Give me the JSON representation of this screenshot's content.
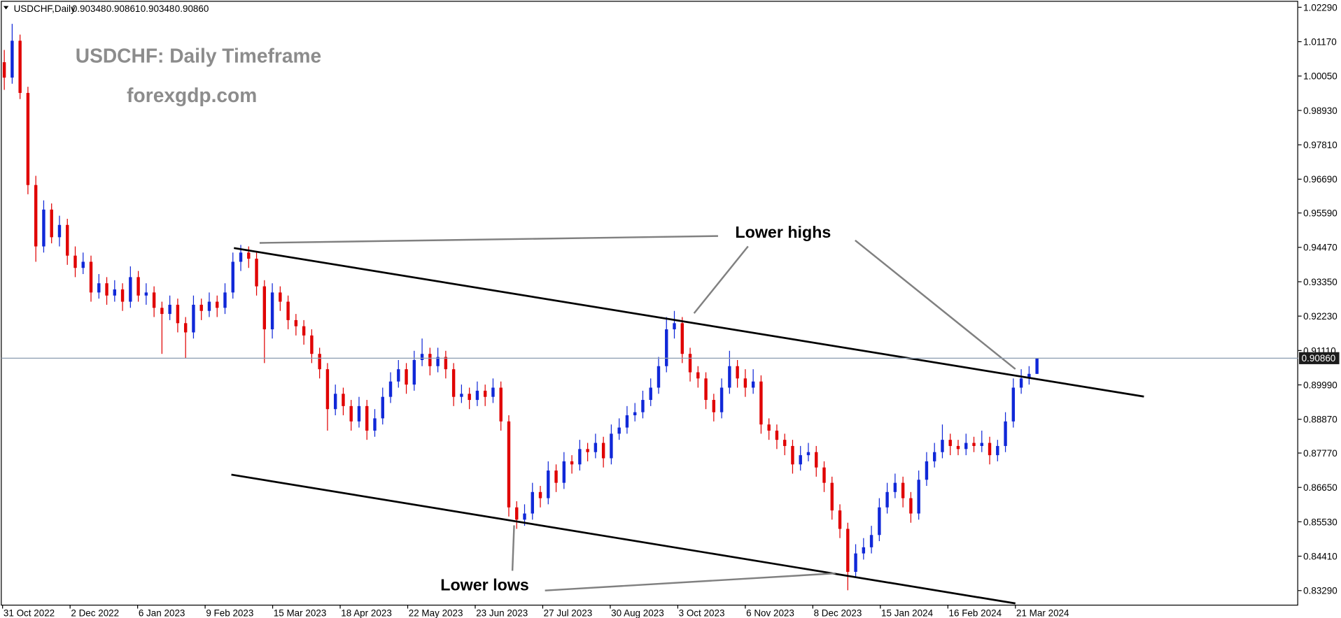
{
  "chart_data": {
    "type": "candlestick",
    "header": {
      "symbol": "USDCHF,Daily",
      "ohlc": [
        "0.90348",
        "0.90861",
        "0.90348",
        "0.90860"
      ]
    },
    "title": "USDCHF: Daily Timeframe",
    "subtitle": "forexgdp.com",
    "annotations": [
      "Lower highs",
      "Lower lows"
    ],
    "up_color": "#1028d8",
    "down_color": "#e00000",
    "ylim": [
      0.82816,
      1.02485
    ],
    "yticks": [
      {
        "value": 1.0229,
        "label": "1.02290"
      },
      {
        "value": 1.0117,
        "label": "1.01170"
      },
      {
        "value": 1.0005,
        "label": "1.00050"
      },
      {
        "value": 0.9893,
        "label": "0.98930"
      },
      {
        "value": 0.9781,
        "label": "0.97810"
      },
      {
        "value": 0.9669,
        "label": "0.96690"
      },
      {
        "value": 0.9559,
        "label": "0.95590"
      },
      {
        "value": 0.9447,
        "label": "0.94470"
      },
      {
        "value": 0.9335,
        "label": "0.93350"
      },
      {
        "value": 0.9223,
        "label": "0.92230"
      },
      {
        "value": 0.9111,
        "label": "0.91110"
      },
      {
        "value": 0.8999,
        "label": "0.89990"
      },
      {
        "value": 0.8887,
        "label": "0.88870"
      },
      {
        "value": 0.8777,
        "label": "0.87770"
      },
      {
        "value": 0.8665,
        "label": "0.86650"
      },
      {
        "value": 0.8553,
        "label": "0.85530"
      },
      {
        "value": 0.8441,
        "label": "0.84410"
      },
      {
        "value": 0.8329,
        "label": "0.83290"
      }
    ],
    "price_line": {
      "value": 0.9086,
      "label": "0.90860"
    },
    "x_labels": [
      "31 Oct 2022",
      "2 Dec 2022",
      "6 Jan 2023",
      "9 Feb 2023",
      "15 Mar 2023",
      "18 Apr 2023",
      "22 May 2023",
      "23 Jun 2023",
      "27 Jul 2023",
      "30 Aug 2023",
      "3 Oct 2023",
      "6 Nov 2023",
      "8 Dec 2023",
      "15 Jan 2024",
      "16 Feb 2024",
      "21 Mar 2024"
    ],
    "candles": [
      [
        1.005,
        1.009,
        0.996,
        1.0
      ],
      [
        1.0,
        1.0175,
        0.998,
        1.012
      ],
      [
        1.012,
        1.014,
        0.993,
        0.995
      ],
      [
        0.995,
        0.997,
        0.962,
        0.965
      ],
      [
        0.965,
        0.968,
        0.94,
        0.945
      ],
      [
        0.945,
        0.96,
        0.943,
        0.957
      ],
      [
        0.957,
        0.959,
        0.946,
        0.948
      ],
      [
        0.948,
        0.955,
        0.945,
        0.952
      ],
      [
        0.952,
        0.954,
        0.939,
        0.942
      ],
      [
        0.942,
        0.945,
        0.935,
        0.938
      ],
      [
        0.938,
        0.943,
        0.936,
        0.94
      ],
      [
        0.94,
        0.942,
        0.927,
        0.93
      ],
      [
        0.93,
        0.936,
        0.928,
        0.933
      ],
      [
        0.933,
        0.935,
        0.926,
        0.929
      ],
      [
        0.929,
        0.934,
        0.927,
        0.931
      ],
      [
        0.931,
        0.933,
        0.924,
        0.927
      ],
      [
        0.927,
        0.9385,
        0.925,
        0.935
      ],
      [
        0.935,
        0.937,
        0.927,
        0.929
      ],
      [
        0.929,
        0.933,
        0.926,
        0.93
      ],
      [
        0.93,
        0.932,
        0.922,
        0.925
      ],
      [
        0.925,
        0.927,
        0.91,
        0.923
      ],
      [
        0.923,
        0.929,
        0.921,
        0.926
      ],
      [
        0.926,
        0.928,
        0.917,
        0.92
      ],
      [
        0.92,
        0.922,
        0.9085,
        0.917
      ],
      [
        0.917,
        0.929,
        0.915,
        0.926
      ],
      [
        0.926,
        0.928,
        0.921,
        0.924
      ],
      [
        0.924,
        0.93,
        0.922,
        0.927
      ],
      [
        0.927,
        0.929,
        0.922,
        0.925
      ],
      [
        0.925,
        0.933,
        0.923,
        0.93
      ],
      [
        0.93,
        0.943,
        0.928,
        0.94
      ],
      [
        0.94,
        0.9455,
        0.937,
        0.943
      ],
      [
        0.943,
        0.945,
        0.938,
        0.941
      ],
      [
        0.941,
        0.943,
        0.929,
        0.932
      ],
      [
        0.932,
        0.934,
        0.907,
        0.918
      ],
      [
        0.918,
        0.933,
        0.915,
        0.93
      ],
      [
        0.93,
        0.932,
        0.924,
        0.927
      ],
      [
        0.927,
        0.929,
        0.918,
        0.921
      ],
      [
        0.921,
        0.923,
        0.916,
        0.919
      ],
      [
        0.919,
        0.921,
        0.913,
        0.916
      ],
      [
        0.916,
        0.918,
        0.907,
        0.91
      ],
      [
        0.91,
        0.912,
        0.902,
        0.905
      ],
      [
        0.905,
        0.907,
        0.885,
        0.892
      ],
      [
        0.892,
        0.9,
        0.89,
        0.897
      ],
      [
        0.897,
        0.899,
        0.89,
        0.893
      ],
      [
        0.893,
        0.895,
        0.885,
        0.888
      ],
      [
        0.888,
        0.896,
        0.886,
        0.893
      ],
      [
        0.893,
        0.895,
        0.882,
        0.885
      ],
      [
        0.885,
        0.892,
        0.883,
        0.889
      ],
      [
        0.889,
        0.899,
        0.887,
        0.896
      ],
      [
        0.896,
        0.904,
        0.894,
        0.901
      ],
      [
        0.901,
        0.908,
        0.899,
        0.905
      ],
      [
        0.905,
        0.907,
        0.897,
        0.9
      ],
      [
        0.9,
        0.911,
        0.898,
        0.908
      ],
      [
        0.908,
        0.915,
        0.906,
        0.91
      ],
      [
        0.91,
        0.912,
        0.903,
        0.906
      ],
      [
        0.906,
        0.912,
        0.904,
        0.909
      ],
      [
        0.909,
        0.911,
        0.902,
        0.905
      ],
      [
        0.905,
        0.907,
        0.893,
        0.896
      ],
      [
        0.896,
        0.9,
        0.894,
        0.897
      ],
      [
        0.897,
        0.899,
        0.892,
        0.895
      ],
      [
        0.895,
        0.901,
        0.893,
        0.898
      ],
      [
        0.898,
        0.9,
        0.893,
        0.896
      ],
      [
        0.896,
        0.902,
        0.894,
        0.899
      ],
      [
        0.899,
        0.901,
        0.885,
        0.888
      ],
      [
        0.888,
        0.89,
        0.857,
        0.86
      ],
      [
        0.86,
        0.862,
        0.853,
        0.856
      ],
      [
        0.856,
        0.861,
        0.854,
        0.858
      ],
      [
        0.858,
        0.868,
        0.856,
        0.865
      ],
      [
        0.865,
        0.867,
        0.86,
        0.863
      ],
      [
        0.863,
        0.875,
        0.861,
        0.872
      ],
      [
        0.872,
        0.874,
        0.865,
        0.868
      ],
      [
        0.868,
        0.878,
        0.866,
        0.875
      ],
      [
        0.875,
        0.877,
        0.871,
        0.874
      ],
      [
        0.874,
        0.882,
        0.872,
        0.879
      ],
      [
        0.879,
        0.881,
        0.875,
        0.878
      ],
      [
        0.878,
        0.884,
        0.876,
        0.881
      ],
      [
        0.881,
        0.883,
        0.873,
        0.876
      ],
      [
        0.876,
        0.887,
        0.874,
        0.884
      ],
      [
        0.884,
        0.889,
        0.882,
        0.886
      ],
      [
        0.886,
        0.893,
        0.884,
        0.89
      ],
      [
        0.89,
        0.894,
        0.888,
        0.891
      ],
      [
        0.891,
        0.898,
        0.889,
        0.895
      ],
      [
        0.895,
        0.902,
        0.893,
        0.899
      ],
      [
        0.899,
        0.909,
        0.897,
        0.906
      ],
      [
        0.906,
        0.922,
        0.904,
        0.918
      ],
      [
        0.918,
        0.924,
        0.915,
        0.92
      ],
      [
        0.92,
        0.922,
        0.907,
        0.91
      ],
      [
        0.91,
        0.912,
        0.901,
        0.904
      ],
      [
        0.904,
        0.906,
        0.899,
        0.902
      ],
      [
        0.902,
        0.904,
        0.892,
        0.895
      ],
      [
        0.895,
        0.897,
        0.888,
        0.891
      ],
      [
        0.891,
        0.902,
        0.889,
        0.899
      ],
      [
        0.899,
        0.911,
        0.897,
        0.906
      ],
      [
        0.906,
        0.908,
        0.899,
        0.902
      ],
      [
        0.902,
        0.905,
        0.896,
        0.899
      ],
      [
        0.899,
        0.905,
        0.897,
        0.901
      ],
      [
        0.901,
        0.903,
        0.884,
        0.887
      ],
      [
        0.887,
        0.889,
        0.882,
        0.885
      ],
      [
        0.885,
        0.887,
        0.879,
        0.882
      ],
      [
        0.882,
        0.884,
        0.877,
        0.88
      ],
      [
        0.88,
        0.882,
        0.871,
        0.874
      ],
      [
        0.874,
        0.88,
        0.872,
        0.877
      ],
      [
        0.877,
        0.881,
        0.875,
        0.878
      ],
      [
        0.878,
        0.88,
        0.87,
        0.873
      ],
      [
        0.873,
        0.875,
        0.865,
        0.868
      ],
      [
        0.868,
        0.87,
        0.856,
        0.859
      ],
      [
        0.859,
        0.861,
        0.85,
        0.853
      ],
      [
        0.853,
        0.855,
        0.833,
        0.839
      ],
      [
        0.839,
        0.848,
        0.837,
        0.845
      ],
      [
        0.845,
        0.85,
        0.843,
        0.847
      ],
      [
        0.847,
        0.854,
        0.845,
        0.851
      ],
      [
        0.851,
        0.863,
        0.849,
        0.86
      ],
      [
        0.86,
        0.868,
        0.858,
        0.865
      ],
      [
        0.865,
        0.871,
        0.863,
        0.868
      ],
      [
        0.868,
        0.87,
        0.86,
        0.863
      ],
      [
        0.863,
        0.865,
        0.855,
        0.858
      ],
      [
        0.858,
        0.872,
        0.856,
        0.869
      ],
      [
        0.869,
        0.878,
        0.867,
        0.875
      ],
      [
        0.875,
        0.881,
        0.873,
        0.878
      ],
      [
        0.878,
        0.887,
        0.876,
        0.882
      ],
      [
        0.882,
        0.884,
        0.877,
        0.88
      ],
      [
        0.88,
        0.882,
        0.877,
        0.879
      ],
      [
        0.879,
        0.884,
        0.877,
        0.881
      ],
      [
        0.881,
        0.883,
        0.878,
        0.88
      ],
      [
        0.88,
        0.885,
        0.878,
        0.881
      ],
      [
        0.881,
        0.883,
        0.874,
        0.877
      ],
      [
        0.877,
        0.882,
        0.875,
        0.88
      ],
      [
        0.88,
        0.891,
        0.878,
        0.888
      ],
      [
        0.888,
        0.902,
        0.886,
        0.899
      ],
      [
        0.899,
        0.905,
        0.897,
        0.902
      ],
      [
        0.902,
        0.906,
        0.9,
        0.9035
      ],
      [
        0.90348,
        0.90861,
        0.90348,
        0.9086
      ]
    ]
  }
}
